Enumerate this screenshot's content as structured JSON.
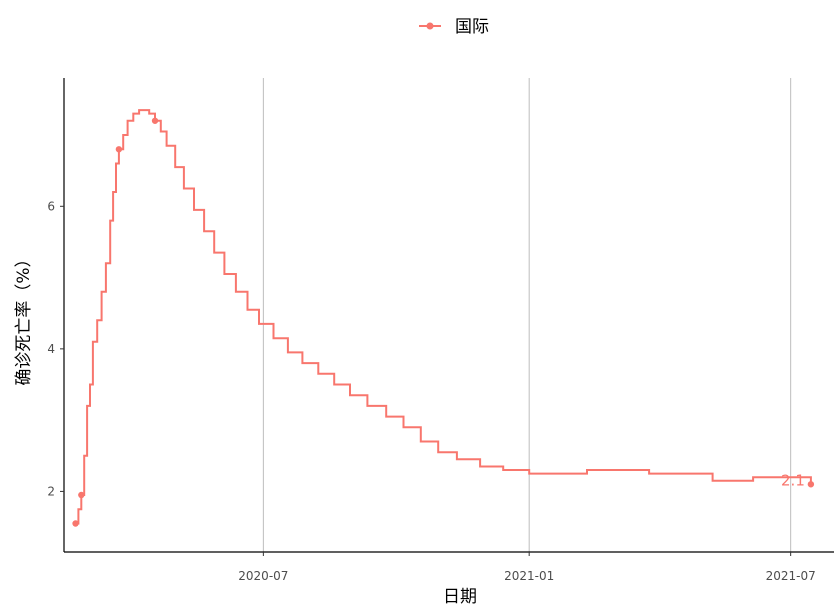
{
  "chart_data": {
    "type": "line",
    "xlabel": "日期",
    "ylabel": "确诊死亡率（%）",
    "x_ticks": [
      {
        "date": "2020-07-01",
        "label": "2020-07"
      },
      {
        "date": "2021-01-01",
        "label": "2021-01"
      },
      {
        "date": "2021-07-01",
        "label": "2021-07"
      }
    ],
    "y_ticks": [
      2,
      4,
      6
    ],
    "xlim": [
      "2020-02-14",
      "2021-07-31"
    ],
    "ylim": [
      1.15,
      7.8
    ],
    "grid": "vertical major lines at x ticks",
    "legend_position": "top",
    "series": [
      {
        "name": "国际",
        "color": "#f8766d",
        "end_label": "2.1",
        "points": [
          [
            "2020-02-22",
            1.55
          ],
          [
            "2020-02-24",
            1.75
          ],
          [
            "2020-02-26",
            1.95
          ],
          [
            "2020-02-28",
            2.5
          ],
          [
            "2020-03-01",
            3.2
          ],
          [
            "2020-03-03",
            3.5
          ],
          [
            "2020-03-05",
            4.1
          ],
          [
            "2020-03-08",
            4.4
          ],
          [
            "2020-03-11",
            4.8
          ],
          [
            "2020-03-14",
            5.2
          ],
          [
            "2020-03-17",
            5.8
          ],
          [
            "2020-03-19",
            6.2
          ],
          [
            "2020-03-21",
            6.6
          ],
          [
            "2020-03-23",
            6.8
          ],
          [
            "2020-03-26",
            7.0
          ],
          [
            "2020-03-29",
            7.2
          ],
          [
            "2020-04-02",
            7.3
          ],
          [
            "2020-04-06",
            7.35
          ],
          [
            "2020-04-09",
            7.35
          ],
          [
            "2020-04-13",
            7.3
          ],
          [
            "2020-04-17",
            7.2
          ],
          [
            "2020-04-21",
            7.05
          ],
          [
            "2020-04-25",
            6.85
          ],
          [
            "2020-05-01",
            6.55
          ],
          [
            "2020-05-07",
            6.25
          ],
          [
            "2020-05-14",
            5.95
          ],
          [
            "2020-05-21",
            5.65
          ],
          [
            "2020-05-28",
            5.35
          ],
          [
            "2020-06-04",
            5.05
          ],
          [
            "2020-06-12",
            4.8
          ],
          [
            "2020-06-20",
            4.55
          ],
          [
            "2020-06-28",
            4.35
          ],
          [
            "2020-07-08",
            4.15
          ],
          [
            "2020-07-18",
            3.95
          ],
          [
            "2020-07-28",
            3.8
          ],
          [
            "2020-08-08",
            3.65
          ],
          [
            "2020-08-19",
            3.5
          ],
          [
            "2020-08-30",
            3.35
          ],
          [
            "2020-09-11",
            3.2
          ],
          [
            "2020-09-24",
            3.05
          ],
          [
            "2020-10-06",
            2.9
          ],
          [
            "2020-10-18",
            2.7
          ],
          [
            "2020-10-30",
            2.55
          ],
          [
            "2020-11-12",
            2.45
          ],
          [
            "2020-11-28",
            2.35
          ],
          [
            "2020-12-14",
            2.3
          ],
          [
            "2021-01-01",
            2.25
          ],
          [
            "2021-02-10",
            2.3
          ],
          [
            "2021-03-25",
            2.25
          ],
          [
            "2021-05-08",
            2.15
          ],
          [
            "2021-06-05",
            2.2
          ],
          [
            "2021-07-15",
            2.1
          ]
        ]
      }
    ]
  }
}
